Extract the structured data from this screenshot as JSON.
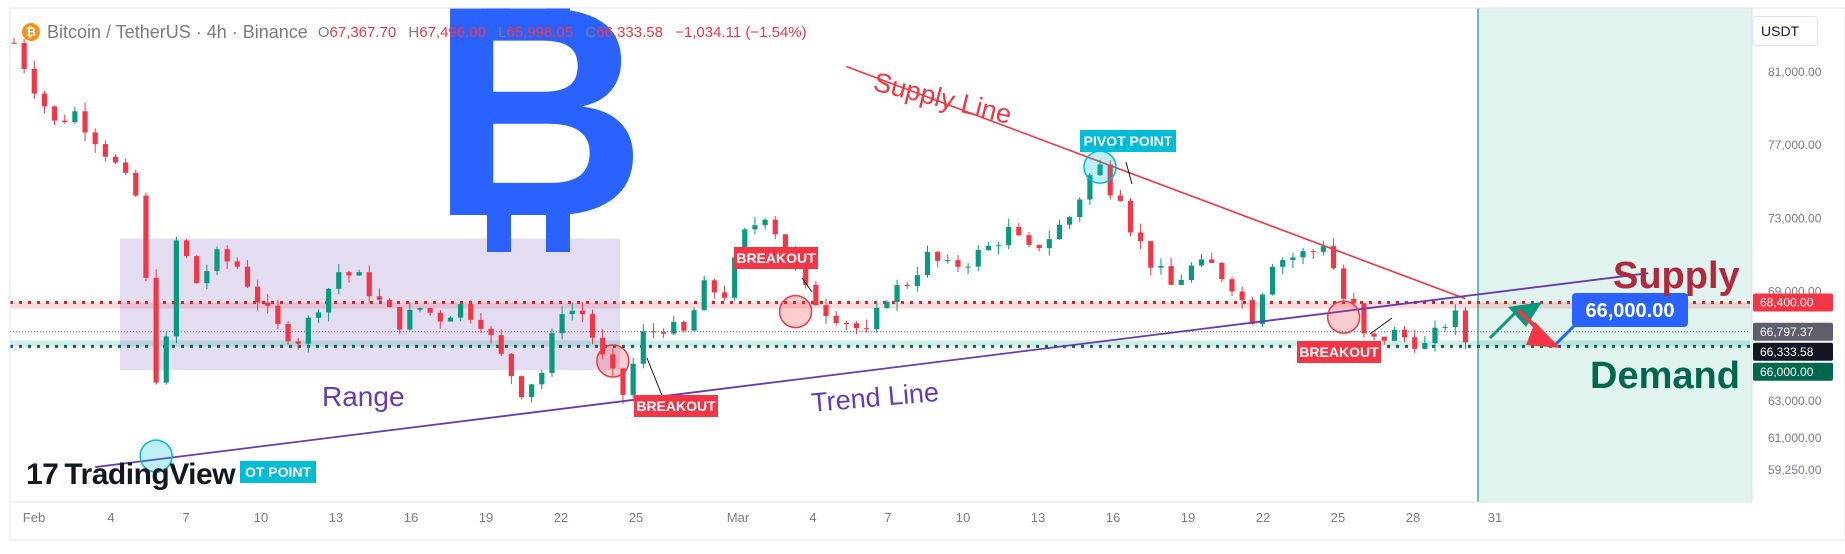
{
  "header": {
    "symbol_icon": "bitcoin-icon",
    "title": "Bitcoin / TetherUS · 4h · Binance",
    "o_label": "O",
    "o": "67,367.70",
    "h_label": "H",
    "h": "67,496.00",
    "l_label": "L",
    "l": "65,998.05",
    "c_label": "C",
    "c": "66,333.58",
    "change": "−1,034.11 (−1.54%)"
  },
  "currency_button": "USDT",
  "watermark": {
    "logo_text": "TradingView",
    "logo_mark": "17"
  },
  "colors": {
    "bullish": "#089981",
    "bearish": "#f23645",
    "bitcoin_blue": "#2962ff",
    "range_fill": "#b39ddb",
    "trend": "#673ab7",
    "supply_text": "#b2283c",
    "demand_text": "#00674f",
    "future_zone": "#d6efe8"
  },
  "annotations": {
    "supply_line": "Supply Line",
    "trend_line": "Trend Line",
    "range": "Range",
    "supply": "Supply",
    "demand": "Demand",
    "pivot_top": "PIVOT POINT",
    "pivot_bottom": "OT POINT",
    "breakout_1": "BREAKOUT",
    "breakout_2": "BREAKOUT",
    "breakout_3": "BREAKOUT",
    "target_price": "66,000.00"
  },
  "chart_data": {
    "type": "candlestick",
    "title": "Bitcoin / TetherUS · 4h · Binance",
    "x_ticks": [
      "Feb",
      "4",
      "7",
      "10",
      "13",
      "16",
      "19",
      "22",
      "25",
      "Mar",
      "4",
      "7",
      "10",
      "13",
      "16",
      "19",
      "22",
      "25",
      "28",
      "31"
    ],
    "y_ticks": [
      "81,000.00",
      "77,000.00",
      "73,000.00",
      "69,000.00",
      "63,000.00",
      "61,000.00",
      "59,250.00"
    ],
    "y_range": [
      57600,
      84500
    ],
    "price_labels": [
      {
        "text": "68,400.00",
        "value": 68400,
        "color": "#f23645"
      },
      {
        "text": "66,797.37",
        "value": 66797.37,
        "color": "#5d606b"
      },
      {
        "text": "66,333.58",
        "value": 66333.58,
        "color": "#131722"
      },
      {
        "text": "66,000.00",
        "value": 66000,
        "color": "#00674f"
      }
    ],
    "supply_level": 68400,
    "demand_level": 66000,
    "range_box": {
      "top": 71900,
      "bottom": 64700
    },
    "close_path": [
      [
        0,
        82600
      ],
      [
        2,
        80200
      ],
      [
        4,
        78200
      ],
      [
        6,
        78800
      ],
      [
        8,
        77400
      ],
      [
        10,
        75900
      ],
      [
        12,
        74200
      ],
      [
        13,
        69500
      ],
      [
        14,
        64400
      ],
      [
        15,
        66200
      ],
      [
        16,
        71700
      ],
      [
        17,
        70800
      ],
      [
        18,
        69500
      ],
      [
        20,
        70900
      ],
      [
        22,
        70400
      ],
      [
        24,
        68600
      ],
      [
        26,
        67000
      ],
      [
        28,
        66400
      ],
      [
        30,
        68300
      ],
      [
        32,
        70100
      ],
      [
        34,
        69700
      ],
      [
        36,
        68400
      ],
      [
        38,
        67300
      ],
      [
        40,
        68100
      ],
      [
        42,
        67600
      ],
      [
        44,
        68200
      ],
      [
        46,
        67400
      ],
      [
        48,
        65400
      ],
      [
        50,
        63600
      ],
      [
        52,
        64600
      ],
      [
        54,
        68100
      ],
      [
        56,
        67800
      ],
      [
        58,
        65300
      ],
      [
        60,
        63400
      ],
      [
        62,
        66600
      ],
      [
        64,
        67100
      ],
      [
        66,
        66700
      ],
      [
        68,
        69200
      ],
      [
        70,
        68900
      ],
      [
        72,
        72100
      ],
      [
        74,
        73300
      ],
      [
        76,
        71400
      ],
      [
        78,
        69000
      ],
      [
        80,
        68000
      ],
      [
        82,
        67400
      ],
      [
        84,
        66600
      ],
      [
        86,
        68800
      ],
      [
        88,
        69500
      ],
      [
        90,
        70900
      ],
      [
        92,
        70300
      ],
      [
        94,
        70700
      ],
      [
        96,
        71400
      ],
      [
        98,
        72300
      ],
      [
        100,
        71200
      ],
      [
        102,
        72000
      ],
      [
        104,
        73100
      ],
      [
        106,
        75300
      ],
      [
        107,
        75800
      ],
      [
        108,
        74700
      ],
      [
        109,
        74400
      ],
      [
        110,
        72600
      ],
      [
        112,
        70600
      ],
      [
        114,
        69300
      ],
      [
        116,
        70300
      ],
      [
        118,
        70400
      ],
      [
        120,
        69400
      ],
      [
        122,
        67600
      ],
      [
        124,
        70700
      ],
      [
        126,
        70900
      ],
      [
        128,
        71200
      ],
      [
        129,
        71700
      ],
      [
        130,
        70300
      ],
      [
        131,
        68600
      ],
      [
        132,
        68100
      ],
      [
        133,
        66500
      ],
      [
        134,
        66300
      ],
      [
        136,
        66700
      ],
      [
        138,
        66300
      ],
      [
        139,
        66000
      ],
      [
        140,
        66600
      ],
      [
        141,
        67300
      ],
      [
        142,
        67600
      ],
      [
        143,
        66300
      ]
    ],
    "pivot_point_top": {
      "index": 107,
      "price": 75800
    },
    "pivot_point_bottom": {
      "index": 14,
      "price": 60000
    },
    "breakouts": [
      {
        "index": 59,
        "price": 65200
      },
      {
        "index": 77,
        "price": 67900
      },
      {
        "index": 131,
        "price": 67600
      }
    ],
    "supply_line": {
      "from": {
        "index": 82,
        "price": 81300
      },
      "to": {
        "index": 143,
        "price": 68600
      }
    },
    "trend_line": {
      "from": {
        "index": 8,
        "price": 59400
      },
      "to": {
        "index": 161,
        "price": 70000
      }
    }
  }
}
